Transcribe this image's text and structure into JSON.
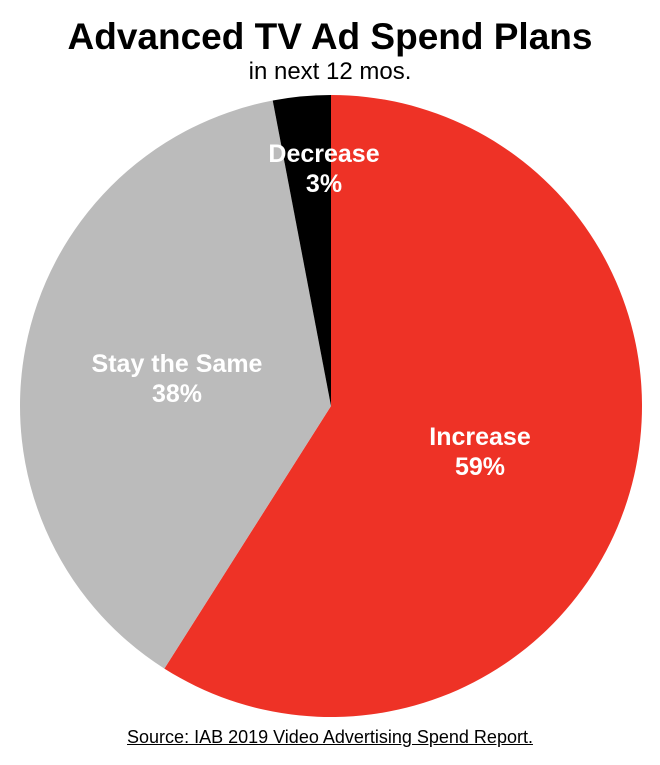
{
  "page": {
    "background": "#ffffff"
  },
  "header": {
    "title": "Advanced TV Ad Spend Plans",
    "subtitle": "in next 12 mos."
  },
  "footer": {
    "source": "Source: IAB 2019 Video Advertising Spend Report."
  },
  "chart_data": {
    "type": "pie",
    "title": "Advanced TV Ad Spend Plans",
    "subtitle": "in next 12 mos.",
    "start_angle_deg": 0,
    "direction": "clockwise",
    "label_color": "#ffffff",
    "slices": [
      {
        "label": "Increase",
        "value": 59,
        "pct_label": "59%",
        "color": "#EE3226"
      },
      {
        "label": "Stay the Same",
        "value": 38,
        "pct_label": "38%",
        "color": "#BBBBBB"
      },
      {
        "label": "Decrease",
        "value": 3,
        "pct_label": "3%",
        "color": "#000000"
      }
    ],
    "source": "Source: IAB 2019 Video Advertising Spend Report."
  }
}
